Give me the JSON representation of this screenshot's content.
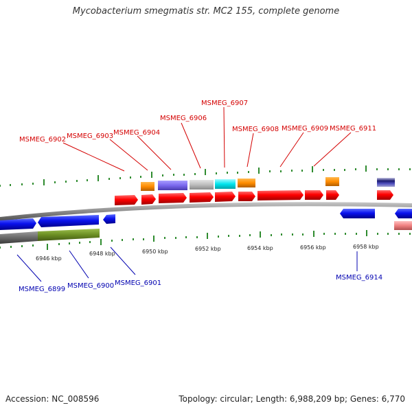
{
  "title": "Mycobacterium smegmatis str. MC2 155, complete genome",
  "footer": {
    "accession": "Accession: NC_008596",
    "summary": "Topology: circular; Length: 6,988,209 bp; Genes: 6,770"
  },
  "scale_labels": [
    "6946 kbp",
    "6948 kbp",
    "6950 kbp",
    "6952 kbp",
    "6954 kbp",
    "6956 kbp",
    "6958 kbp"
  ],
  "top_labels": [
    "MSMEG_6902",
    "MSMEG_6903",
    "MSMEG_6904",
    "MSMEG_6906",
    "MSMEG_6907",
    "MSMEG_6908",
    "MSMEG_6909",
    "MSMEG_6911"
  ],
  "bottom_labels": [
    "MSMEG_6899",
    "MSMEG_6900",
    "MSMEG_6901",
    "MSMEG_6914"
  ],
  "colors": {
    "forward_cds": "#ff0000",
    "reverse_cds": "#0000ee",
    "orange": "#ff8c00",
    "slate": "#7b68ee",
    "gray": "#bdbdbd",
    "cyan": "#00e5ee",
    "pink": "#f08080",
    "olive": "#6b8e23",
    "backbone": "#8a8a8a",
    "tick": "#2e8b2e",
    "label_top": "#d40000",
    "label_bottom": "#0000b0"
  }
}
